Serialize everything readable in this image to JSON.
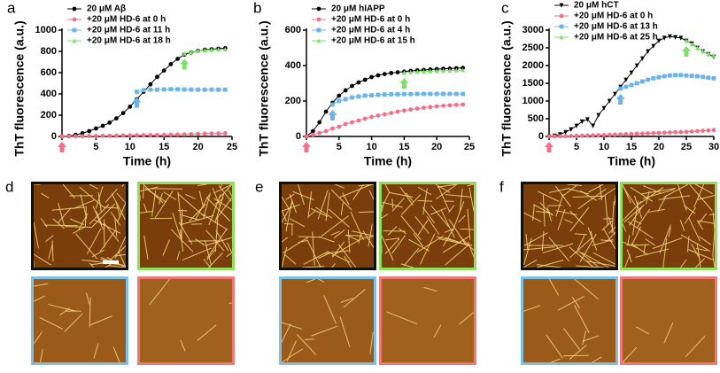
{
  "chart_data": [
    {
      "type": "line",
      "panel_label": "a",
      "x_label": "Time (h)",
      "y_label": "ThT fluorescence (a.u.)",
      "xlim": [
        0,
        25
      ],
      "xticks": [
        0,
        5,
        10,
        15,
        20,
        25
      ],
      "ylim": [
        0,
        1000
      ],
      "yticks": [
        0,
        200,
        400,
        600,
        800,
        1000
      ],
      "x": [
        0,
        1,
        2,
        3,
        4,
        5,
        6,
        7,
        8,
        9,
        10,
        11,
        12,
        13,
        14,
        15,
        16,
        17,
        18,
        19,
        20,
        21,
        22,
        23,
        24
      ],
      "series": [
        {
          "name": "20 μM Aβ",
          "color": "#000000",
          "marker": "circle",
          "values": [
            0,
            5,
            15,
            30,
            50,
            75,
            100,
            130,
            170,
            220,
            280,
            350,
            420,
            490,
            560,
            620,
            680,
            730,
            770,
            790,
            805,
            815,
            820,
            825,
            830
          ]
        },
        {
          "name": "+20 μM HD-6 at 0 h",
          "color": "#f0708a",
          "marker": "circle",
          "arrow": true,
          "values": [
            0,
            1,
            2,
            3,
            4,
            5,
            6,
            7,
            8,
            9,
            10,
            11,
            12,
            13,
            14,
            15,
            16,
            18,
            20,
            22,
            24,
            26,
            28,
            29,
            30
          ]
        },
        {
          "name": "+20 μM HD-6 at 11 h",
          "color": "#6cb4e8",
          "marker": "square",
          "arrow": true,
          "values": [
            null,
            null,
            null,
            null,
            null,
            null,
            null,
            null,
            null,
            null,
            null,
            420,
            435,
            440,
            440,
            442,
            445,
            443,
            442,
            441,
            440,
            440,
            441,
            440,
            440
          ]
        },
        {
          "name": "+20 μM HD-6 at 18 h",
          "color": "#7ee06a",
          "marker": "triangle",
          "arrow": true,
          "values": [
            null,
            null,
            null,
            null,
            null,
            null,
            null,
            null,
            null,
            null,
            null,
            null,
            null,
            null,
            null,
            null,
            null,
            null,
            780,
            795,
            805,
            810,
            815,
            818,
            820
          ]
        }
      ]
    },
    {
      "type": "line",
      "panel_label": "b",
      "x_label": "Time (h)",
      "y_label": "ThT fluorescence (a.u.)",
      "xlim": [
        0,
        25
      ],
      "xticks": [
        0,
        5,
        10,
        15,
        20,
        25
      ],
      "ylim": [
        0,
        600
      ],
      "yticks": [
        0,
        200,
        400,
        600
      ],
      "x": [
        0,
        1,
        2,
        3,
        4,
        5,
        6,
        7,
        8,
        9,
        10,
        11,
        12,
        13,
        14,
        15,
        16,
        17,
        18,
        19,
        20,
        21,
        22,
        23,
        24
      ],
      "series": [
        {
          "name": "20 μM hIAPP",
          "color": "#000000",
          "marker": "circle",
          "values": [
            0,
            30,
            80,
            140,
            190,
            230,
            260,
            285,
            305,
            320,
            335,
            345,
            352,
            358,
            362,
            366,
            370,
            373,
            375,
            378,
            380,
            382,
            383,
            385,
            387
          ]
        },
        {
          "name": "+20 μM HD-6 at 0 h",
          "color": "#f0708a",
          "marker": "circle",
          "arrow": true,
          "values": [
            0,
            10,
            20,
            30,
            45,
            55,
            70,
            80,
            90,
            100,
            110,
            118,
            125,
            132,
            140,
            146,
            152,
            157,
            162,
            166,
            170,
            173,
            176,
            178,
            180
          ]
        },
        {
          "name": "+20 μM HD-6 at 4 h",
          "color": "#6cb4e8",
          "marker": "square",
          "arrow": true,
          "values": [
            null,
            null,
            null,
            null,
            180,
            200,
            210,
            220,
            225,
            230,
            232,
            235,
            237,
            238,
            238,
            239,
            239,
            240,
            240,
            240,
            240,
            240,
            240,
            240,
            240
          ]
        },
        {
          "name": "+20 μM HD-6 at 15 h",
          "color": "#7ee06a",
          "marker": "triangle",
          "arrow": true,
          "values": [
            null,
            null,
            null,
            null,
            null,
            null,
            null,
            null,
            null,
            null,
            null,
            null,
            null,
            null,
            null,
            360,
            362,
            365,
            367,
            368,
            370,
            371,
            372,
            373,
            375
          ]
        }
      ]
    },
    {
      "type": "line",
      "panel_label": "c",
      "x_label": "Time (h)",
      "y_label": "ThT fluorescence (a.u.)",
      "xlim": [
        0,
        30
      ],
      "xticks": [
        0,
        5,
        10,
        15,
        20,
        25,
        30
      ],
      "ylim": [
        0,
        3000
      ],
      "yticks": [
        0,
        500,
        1000,
        1500,
        2000,
        2500,
        3000
      ],
      "x": [
        0,
        1,
        2,
        3,
        4,
        5,
        6,
        7,
        8,
        9,
        10,
        11,
        12,
        13,
        14,
        15,
        16,
        17,
        18,
        19,
        20,
        21,
        22,
        23,
        24,
        25,
        26,
        27,
        28,
        29,
        30
      ],
      "series": [
        {
          "name": "20 μM hCT",
          "color": "#000000",
          "marker": "triangle-down",
          "values": [
            0,
            20,
            60,
            120,
            200,
            300,
            420,
            480,
            300,
            600,
            800,
            1000,
            1200,
            1400,
            1600,
            1800,
            2000,
            2200,
            2400,
            2550,
            2700,
            2780,
            2820,
            2800,
            2780,
            2700,
            2620,
            2500,
            2400,
            2320,
            2250
          ]
        },
        {
          "name": "+20 μM HD-6 at 0 h",
          "color": "#f0708a",
          "marker": "circle",
          "arrow": true,
          "values": [
            0,
            2,
            5,
            8,
            12,
            16,
            20,
            25,
            30,
            35,
            40,
            46,
            52,
            58,
            64,
            70,
            76,
            82,
            88,
            94,
            100,
            106,
            112,
            118,
            124,
            130,
            140,
            150,
            160,
            170,
            180
          ]
        },
        {
          "name": "+20 μM HD-6 at 13 h",
          "color": "#6cb4e8",
          "marker": "square",
          "arrow": true,
          "values": [
            null,
            null,
            null,
            null,
            null,
            null,
            null,
            null,
            null,
            null,
            null,
            null,
            null,
            1350,
            1400,
            1450,
            1500,
            1550,
            1600,
            1640,
            1670,
            1700,
            1720,
            1730,
            1730,
            1720,
            1710,
            1700,
            1680,
            1660,
            1640
          ]
        },
        {
          "name": "+20 μM HD-6 at 25 h",
          "color": "#7ee06a",
          "marker": "triangle",
          "arrow": true,
          "values": [
            null,
            null,
            null,
            null,
            null,
            null,
            null,
            null,
            null,
            null,
            null,
            null,
            null,
            null,
            null,
            null,
            null,
            null,
            null,
            null,
            null,
            null,
            null,
            null,
            null,
            2700,
            2600,
            2500,
            2400,
            2330,
            2280
          ]
        }
      ]
    }
  ],
  "image_panels": [
    {
      "label": "d"
    },
    {
      "label": "e"
    },
    {
      "label": "f"
    }
  ]
}
